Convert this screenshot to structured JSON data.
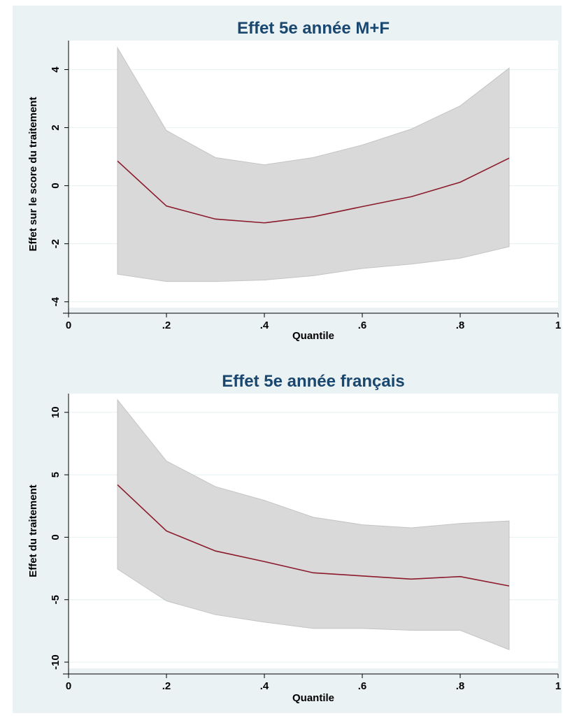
{
  "chart_data": [
    {
      "type": "area",
      "title": "Effet 5e année M+F",
      "xlabel": "Quantile",
      "ylabel": "Effet sur le score du traitement",
      "xlim": [
        0,
        1
      ],
      "ylim": [
        -4.2,
        5
      ],
      "x_ticks": [
        0,
        0.2,
        0.4,
        0.6,
        0.8,
        1
      ],
      "x_tick_labels": [
        "0",
        ".2",
        ".4",
        ".6",
        ".8",
        "1"
      ],
      "y_ticks": [
        -4,
        -2,
        0,
        2,
        4
      ],
      "y_tick_labels": [
        "-4",
        "-2",
        "0",
        "2",
        "4"
      ],
      "grid": true,
      "x": [
        0.1,
        0.2,
        0.3,
        0.4,
        0.5,
        0.6,
        0.7,
        0.8,
        0.9
      ],
      "estimate": [
        0.85,
        -0.7,
        -1.15,
        -1.28,
        -1.07,
        -0.72,
        -0.38,
        0.12,
        0.95
      ],
      "ci_upper": [
        4.75,
        1.9,
        0.97,
        0.72,
        0.97,
        1.4,
        1.95,
        2.75,
        4.05
      ],
      "ci_lower": [
        -3.05,
        -3.3,
        -3.3,
        -3.25,
        -3.1,
        -2.85,
        -2.7,
        -2.5,
        -2.1
      ],
      "colors": {
        "line": "#8b1a2b",
        "band": "#d9d9d9",
        "band_edge": "#c4c4c4"
      }
    },
    {
      "type": "area",
      "title": "Effet 5e année français",
      "xlabel": "Quantile",
      "ylabel": "Effet du traitement",
      "xlim": [
        0,
        1
      ],
      "ylim": [
        -10.5,
        11.5
      ],
      "x_ticks": [
        0,
        0.2,
        0.4,
        0.6,
        0.8,
        1
      ],
      "x_tick_labels": [
        "0",
        ".2",
        ".4",
        ".6",
        ".8",
        "1"
      ],
      "y_ticks": [
        -10,
        -5,
        0,
        5,
        10
      ],
      "y_tick_labels": [
        "-10",
        "-5",
        "0",
        "5",
        "10"
      ],
      "grid": true,
      "x": [
        0.1,
        0.2,
        0.3,
        0.4,
        0.5,
        0.6,
        0.7,
        0.8,
        0.9
      ],
      "estimate": [
        4.2,
        0.5,
        -1.1,
        -1.95,
        -2.85,
        -3.1,
        -3.35,
        -3.15,
        -3.9
      ],
      "ci_upper": [
        11.0,
        6.1,
        4.05,
        2.95,
        1.6,
        1.0,
        0.75,
        1.1,
        1.3
      ],
      "ci_lower": [
        -2.55,
        -5.1,
        -6.2,
        -6.8,
        -7.3,
        -7.3,
        -7.45,
        -7.45,
        -9.0
      ],
      "colors": {
        "line": "#8b1a2b",
        "band": "#d9d9d9",
        "band_edge": "#c4c4c4"
      }
    }
  ]
}
